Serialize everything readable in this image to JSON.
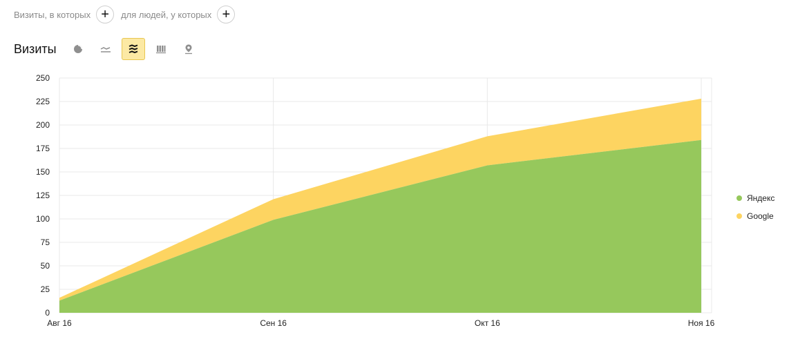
{
  "segment": {
    "visits_label": "Визиты, в которых",
    "people_label": "для людей, у которых",
    "add_symbol": "+"
  },
  "header": {
    "title": "Визиты",
    "views": [
      {
        "icon": "pie-chart-icon",
        "active": false
      },
      {
        "icon": "line-chart-icon",
        "active": false
      },
      {
        "icon": "stacked-area-chart-icon",
        "active": true
      },
      {
        "icon": "bar-chart-icon",
        "active": false
      },
      {
        "icon": "map-pin-icon",
        "active": false
      }
    ]
  },
  "colors": {
    "yandex": "#96c85c",
    "google": "#fdd461",
    "grid": "#e8e8e8",
    "axis_text": "#222222"
  },
  "chart_data": {
    "type": "area",
    "stacked": true,
    "categories": [
      "Авг 16",
      "Сен 16",
      "Окт 16",
      "Ноя 16"
    ],
    "series": [
      {
        "name": "Яндекс",
        "values": [
          13,
          99,
          157,
          184
        ]
      },
      {
        "name": "Google",
        "values": [
          3,
          22,
          31,
          44
        ]
      }
    ],
    "ylim": [
      0,
      250
    ],
    "yticks": [
      0,
      25,
      50,
      75,
      100,
      125,
      150,
      175,
      200,
      225,
      250
    ],
    "grid": true,
    "legend": "right"
  }
}
